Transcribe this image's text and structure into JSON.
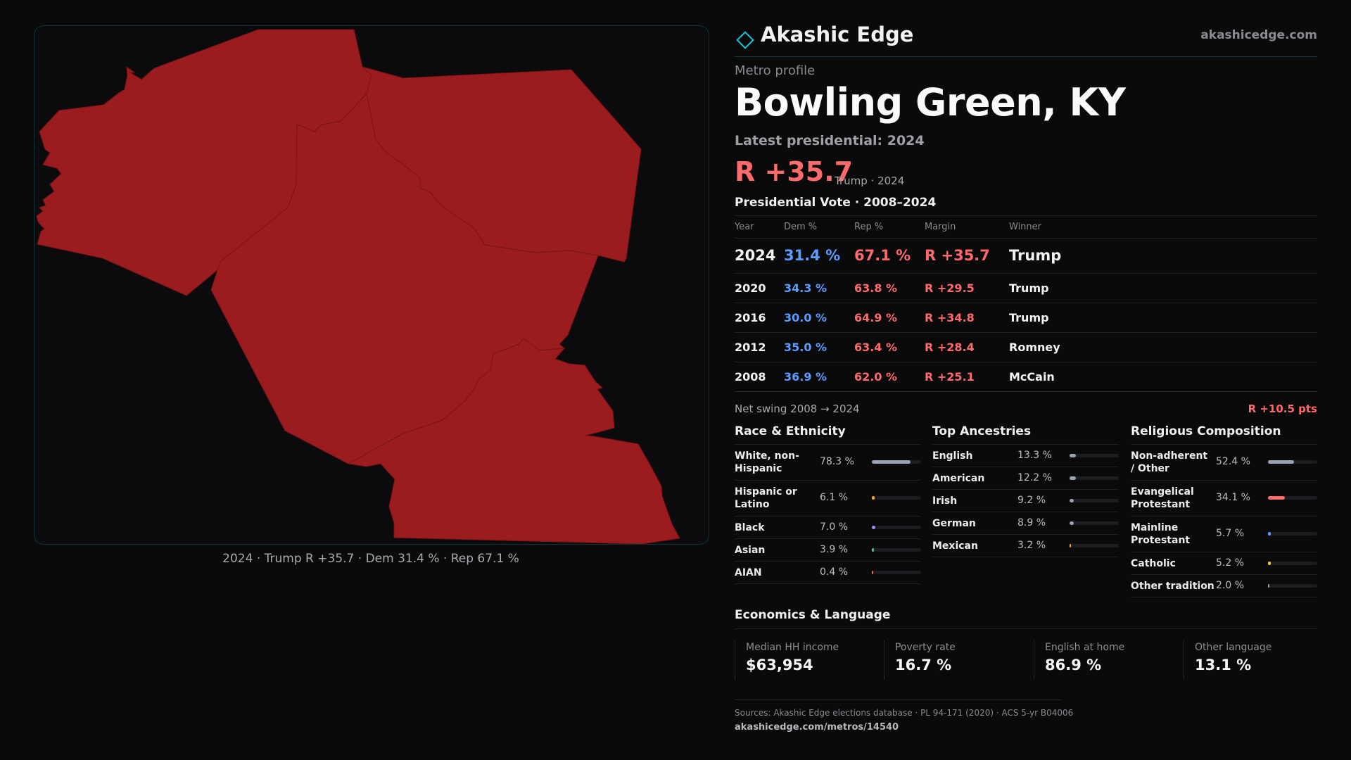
{
  "brand": {
    "name": "Akashic Edge",
    "url": "akashicedge.com"
  },
  "header": {
    "eyebrow": "Metro profile",
    "title": "Bowling Green, KY"
  },
  "latest": {
    "label": "Latest presidential: 2024",
    "margin": "R +35.7",
    "note": "Trump · 2024"
  },
  "map": {
    "caption": "2024 · Trump R +35.7 · Dem 31.4 % · Rep 67.1 %",
    "fill_color": "#9b1c1f",
    "border_color": "#7a1214"
  },
  "vote_table": {
    "title": "Presidential Vote · 2008–2024",
    "headers": {
      "year": "Year",
      "dem": "Dem %",
      "rep": "Rep %",
      "margin": "Margin",
      "winner": "Winner"
    },
    "rows": [
      {
        "year": "2024",
        "dem": "31.4 %",
        "rep": "67.1 %",
        "margin": "R +35.7",
        "winner": "Trump"
      },
      {
        "year": "2020",
        "dem": "34.3 %",
        "rep": "63.8 %",
        "margin": "R +29.5",
        "winner": "Trump"
      },
      {
        "year": "2016",
        "dem": "30.0 %",
        "rep": "64.9 %",
        "margin": "R +34.8",
        "winner": "Trump"
      },
      {
        "year": "2012",
        "dem": "35.0 %",
        "rep": "63.4 %",
        "margin": "R +28.4",
        "winner": "Romney"
      },
      {
        "year": "2008",
        "dem": "36.9 %",
        "rep": "62.0 %",
        "margin": "R +25.1",
        "winner": "McCain"
      }
    ]
  },
  "swing": {
    "label": "Net swing 2008 → 2024",
    "value": "R +10.5 pts"
  },
  "race": {
    "title": "Race & Ethnicity",
    "rows": [
      {
        "label": "White, non-Hispanic",
        "pct": "78.3 %",
        "fraction": 0.783,
        "color": "#9aa3b5"
      },
      {
        "label": "Hispanic or Latino",
        "pct": "6.1 %",
        "fraction": 0.061,
        "color": "#f5a623"
      },
      {
        "label": "Black",
        "pct": "7.0 %",
        "fraction": 0.07,
        "color": "#9b8cff"
      },
      {
        "label": "Asian",
        "pct": "3.9 %",
        "fraction": 0.039,
        "color": "#3fc7a5"
      },
      {
        "label": "AIAN",
        "pct": "0.4 %",
        "fraction": 0.004,
        "color": "#e06c4c"
      }
    ]
  },
  "ancestry": {
    "title": "Top Ancestries",
    "rows": [
      {
        "label": "English",
        "pct": "13.3 %",
        "fraction": 0.133,
        "color": "#9aa3b5"
      },
      {
        "label": "American",
        "pct": "12.2 %",
        "fraction": 0.122,
        "color": "#9aa3b5"
      },
      {
        "label": "Irish",
        "pct": "9.2 %",
        "fraction": 0.092,
        "color": "#9aa3b5"
      },
      {
        "label": "German",
        "pct": "8.9 %",
        "fraction": 0.089,
        "color": "#9aa3b5"
      },
      {
        "label": "Mexican",
        "pct": "3.2 %",
        "fraction": 0.032,
        "color": "#f5a623"
      }
    ]
  },
  "religion": {
    "title": "Religious Composition",
    "rows": [
      {
        "label": "Non-adherent / Other",
        "pct": "52.4 %",
        "fraction": 0.524,
        "color": "#9aa3b5"
      },
      {
        "label": "Evangelical Protestant",
        "pct": "34.1 %",
        "fraction": 0.341,
        "color": "#ff6b6b"
      },
      {
        "label": "Mainline Protestant",
        "pct": "5.7 %",
        "fraction": 0.057,
        "color": "#5c9cff"
      },
      {
        "label": "Catholic",
        "pct": "5.2 %",
        "fraction": 0.052,
        "color": "#f5c542"
      },
      {
        "label": "Other tradition",
        "pct": "2.0 %",
        "fraction": 0.02,
        "color": "#9aa3b5"
      }
    ]
  },
  "economics": {
    "title": "Economics & Language",
    "cards": [
      {
        "label": "Median HH income",
        "value": "$63,954"
      },
      {
        "label": "Poverty rate",
        "value": "16.7 %"
      },
      {
        "label": "English at home",
        "value": "86.9 %"
      },
      {
        "label": "Other language",
        "value": "13.1 %"
      }
    ]
  },
  "footer": {
    "sources": "Sources: Akashic Edge elections database · PL 94-171 (2020) · ACS 5-yr B04006",
    "url": "akashicedge.com/metros/14540"
  },
  "colors": {
    "rep": "#ff6b6b",
    "dem": "#5c9cff",
    "accent": "#17c3d6"
  }
}
